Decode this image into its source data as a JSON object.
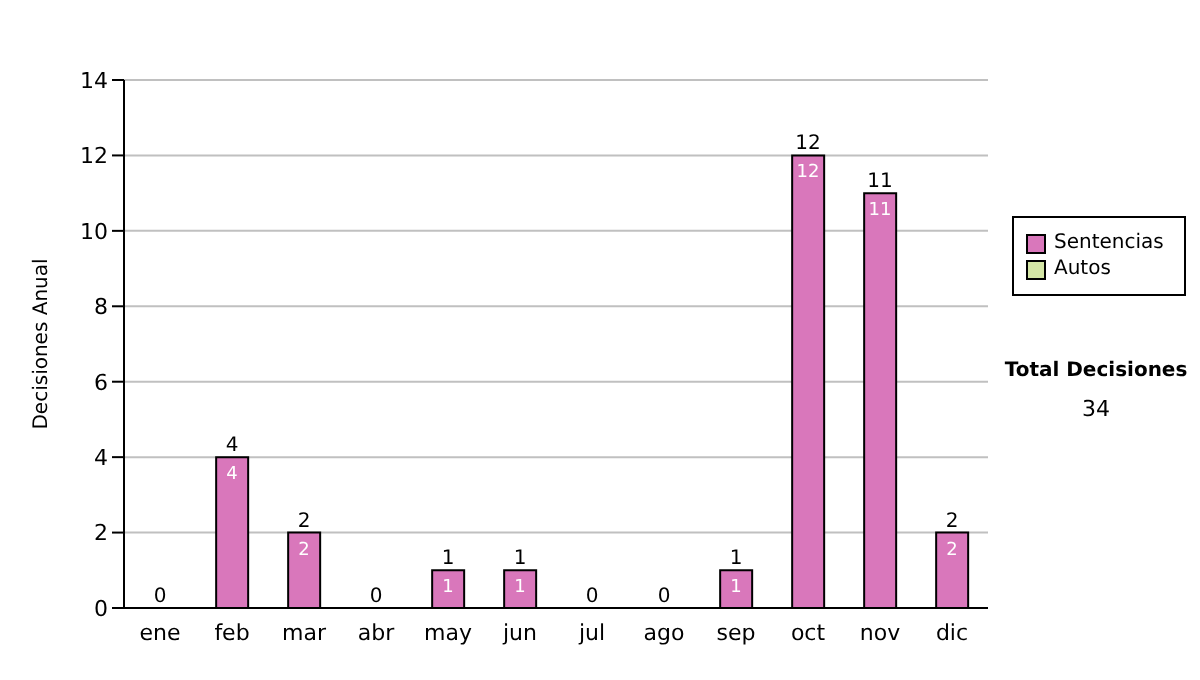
{
  "chart_data": {
    "type": "bar",
    "stacked": true,
    "ylabel": "Decisiones Anual",
    "categories": [
      "ene",
      "feb",
      "mar",
      "abr",
      "may",
      "jun",
      "jul",
      "ago",
      "sep",
      "oct",
      "nov",
      "dic"
    ],
    "series": [
      {
        "name": "Sentencias",
        "color": "#d977bb",
        "values": [
          0,
          4,
          2,
          0,
          1,
          1,
          0,
          0,
          1,
          12,
          11,
          2
        ],
        "value_labels": [
          null,
          "4",
          "2",
          null,
          "1",
          "1",
          null,
          null,
          "1",
          "12",
          "11",
          "2"
        ]
      },
      {
        "name": "Autos",
        "color": "#d4e6a5",
        "values": [
          0,
          0,
          0,
          0,
          0,
          0,
          0,
          0,
          0,
          0,
          0,
          0
        ]
      }
    ],
    "totals": [
      "0",
      "4",
      "2",
      "0",
      "1",
      "1",
      "0",
      "0",
      "1",
      "12",
      "11",
      "2"
    ],
    "ylim": [
      0,
      14
    ],
    "yticks": [
      0,
      2,
      4,
      6,
      8,
      10,
      12,
      14
    ],
    "grid": "y",
    "legend": "right",
    "annotations": [
      "Total Decisiones",
      "34"
    ]
  }
}
